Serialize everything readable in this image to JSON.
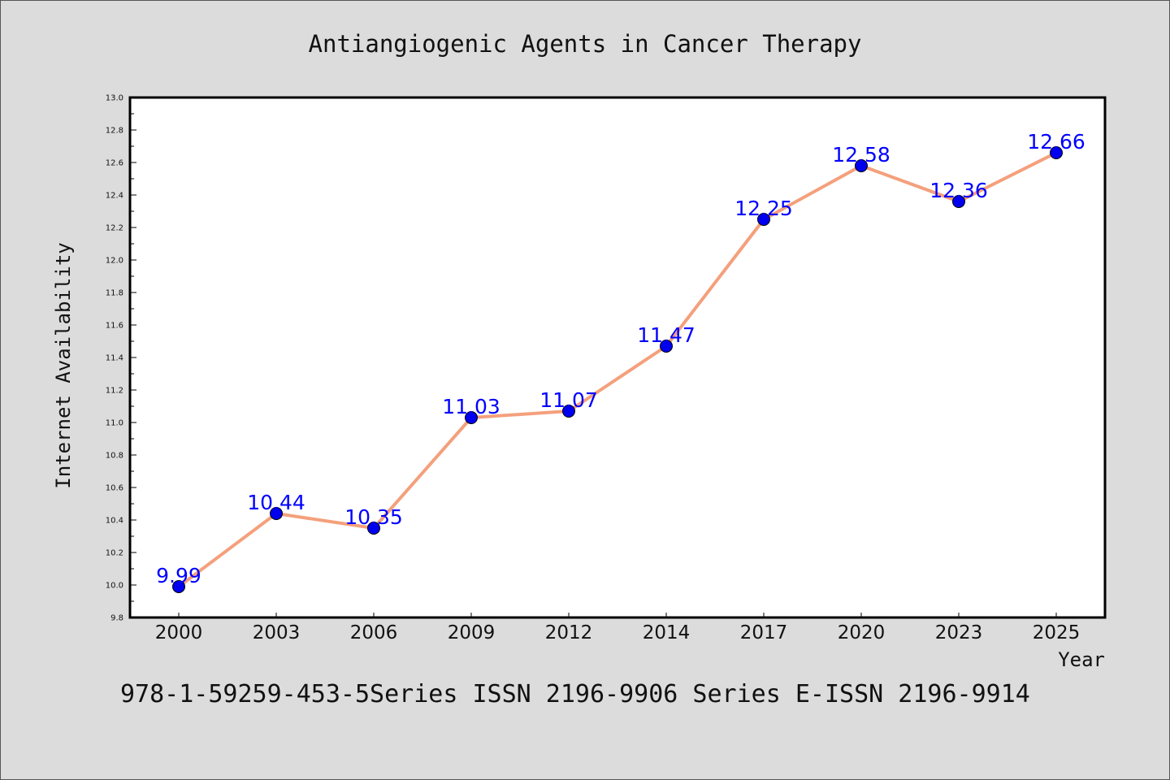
{
  "chart_data": {
    "type": "line",
    "title": "Antiangiogenic Agents in Cancer Therapy",
    "xlabel": "Year",
    "ylabel": "Internet Availability",
    "categories": [
      "2000",
      "2003",
      "2006",
      "2009",
      "2012",
      "2014",
      "2017",
      "2020",
      "2023",
      "2025"
    ],
    "series": [
      {
        "values": [
          9.99,
          10.44,
          10.35,
          11.03,
          11.07,
          11.47,
          12.25,
          12.58,
          12.36,
          12.66
        ],
        "line_color": "#f4a07c",
        "marker_color": "#0000ee"
      }
    ],
    "data_labels": [
      "9.99",
      "10.44",
      "10.35",
      "11.03",
      "11.07",
      "11.47",
      "12.25",
      "12.58",
      "12.36",
      "12.66"
    ],
    "ylim": [
      9.8,
      13.0
    ],
    "yticks": [
      "9.8",
      "10.0",
      "10.2",
      "10.4",
      "10.6",
      "10.8",
      "11.0",
      "11.2",
      "11.4",
      "11.6",
      "11.8",
      "12.0",
      "12.2",
      "12.4",
      "12.6",
      "12.8",
      "13.0"
    ],
    "grid": false,
    "legend": "none"
  },
  "footer": "978-1-59259-453-5Series ISSN 2196-9906 Series E-ISSN 2196-9914",
  "colors": {
    "background": "#dcdcdc",
    "plot_background": "#ffffff",
    "data_label": "#0000ff"
  }
}
